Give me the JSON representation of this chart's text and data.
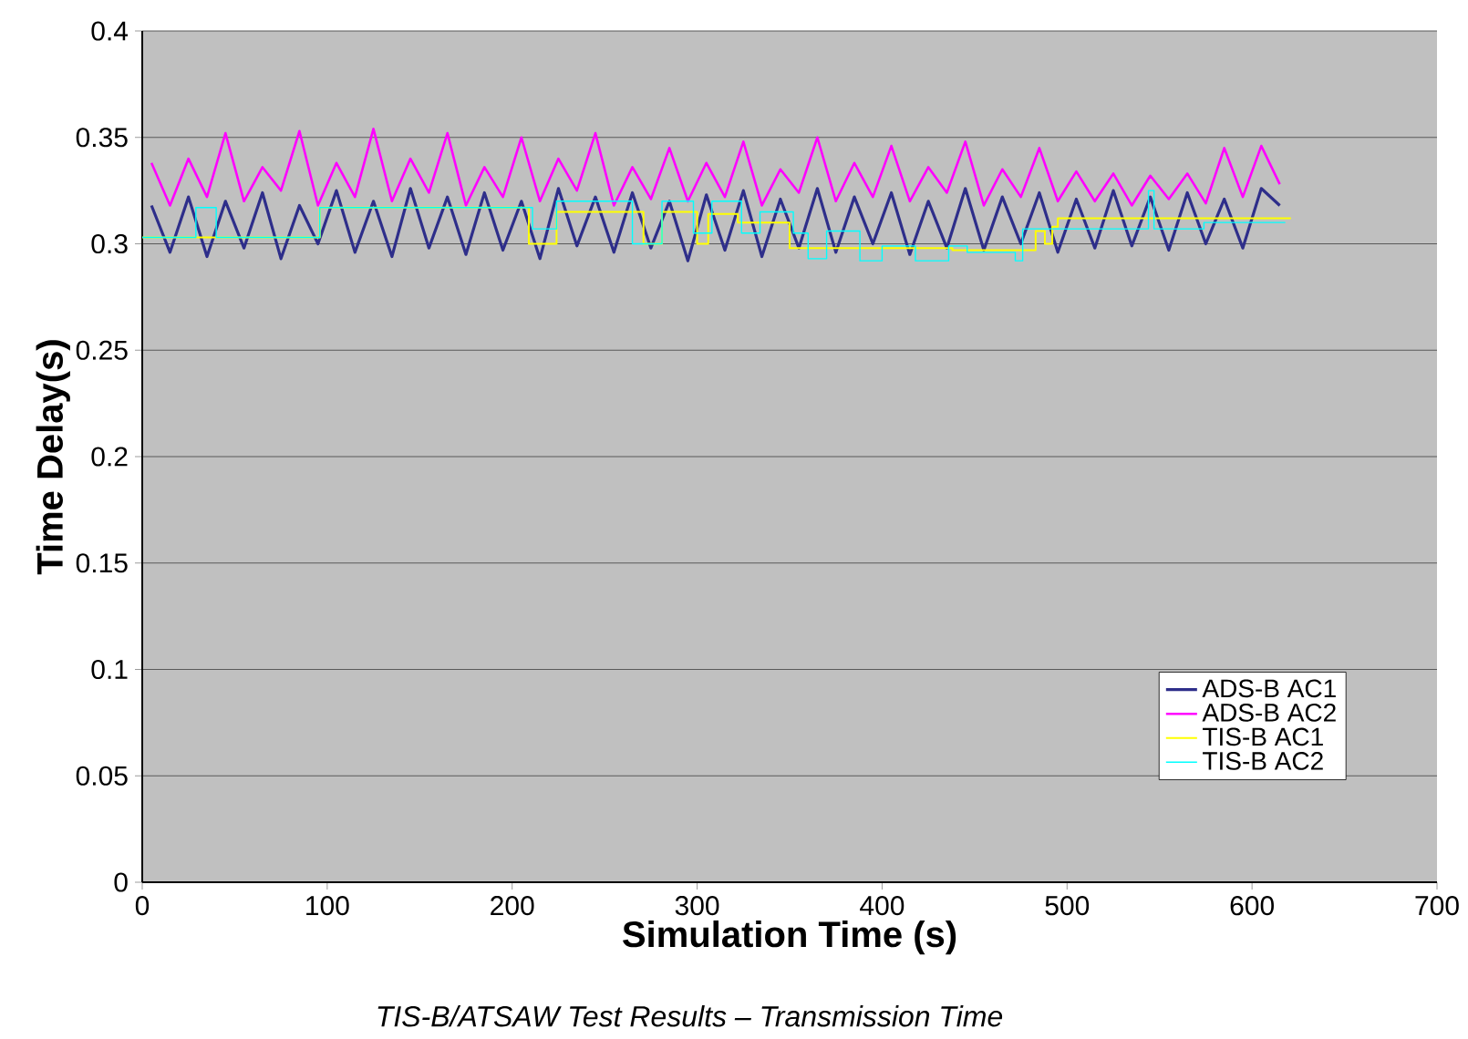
{
  "chart_data": {
    "type": "line",
    "xlabel": "Simulation Time (s)",
    "ylabel": "Time Delay(s)",
    "annotations": [
      "*TIS-B/ATSAW Test Results – Transmission Time*"
    ],
    "xlim": [
      0,
      700
    ],
    "xticks": [
      0,
      100,
      200,
      300,
      400,
      500,
      600,
      700
    ],
    "ylim": [
      0,
      0.4
    ],
    "yticks": [
      0,
      0.05,
      0.1,
      0.15,
      0.2,
      0.25,
      0.3,
      0.35,
      0.4
    ],
    "grid": "y",
    "legend": "bottom right",
    "marker": "none",
    "line_style": "solid",
    "series": [
      {
        "name": "ADS-B AC1",
        "color": "#2e2e8a",
        "x": [
          5,
          15,
          25,
          35,
          45,
          55,
          65,
          75,
          85,
          95,
          105,
          115,
          125,
          135,
          145,
          155,
          165,
          175,
          185,
          195,
          205,
          215,
          225,
          235,
          245,
          255,
          265,
          275,
          285,
          295,
          305,
          315,
          325,
          335,
          345,
          355,
          365,
          375,
          385,
          395,
          405,
          415,
          425,
          435,
          445,
          455,
          465,
          475,
          485,
          495,
          505,
          515,
          525,
          535,
          545,
          555,
          565,
          575,
          585,
          595,
          605,
          615
        ],
        "values": [
          0.318,
          0.296,
          0.322,
          0.294,
          0.32,
          0.298,
          0.324,
          0.293,
          0.318,
          0.3,
          0.325,
          0.296,
          0.32,
          0.294,
          0.326,
          0.298,
          0.322,
          0.295,
          0.324,
          0.297,
          0.32,
          0.293,
          0.326,
          0.299,
          0.322,
          0.296,
          0.324,
          0.298,
          0.32,
          0.292,
          0.323,
          0.297,
          0.325,
          0.294,
          0.321,
          0.298,
          0.326,
          0.296,
          0.322,
          0.3,
          0.324,
          0.295,
          0.32,
          0.298,
          0.326,
          0.297,
          0.322,
          0.3,
          0.324,
          0.296,
          0.321,
          0.298,
          0.325,
          0.299,
          0.322,
          0.297,
          0.324,
          0.3,
          0.321,
          0.298,
          0.326,
          0.318
        ]
      },
      {
        "name": "ADS-B AC2",
        "color": "#ff00ff",
        "x": [
          5,
          15,
          25,
          35,
          45,
          55,
          65,
          75,
          85,
          95,
          105,
          115,
          125,
          135,
          145,
          155,
          165,
          175,
          185,
          195,
          205,
          215,
          225,
          235,
          245,
          255,
          265,
          275,
          285,
          295,
          305,
          315,
          325,
          335,
          345,
          355,
          365,
          375,
          385,
          395,
          405,
          415,
          425,
          435,
          445,
          455,
          465,
          475,
          485,
          495,
          505,
          515,
          525,
          535,
          545,
          555,
          565,
          575,
          585,
          595,
          605,
          615
        ],
        "values": [
          0.338,
          0.318,
          0.34,
          0.322,
          0.352,
          0.32,
          0.336,
          0.325,
          0.353,
          0.318,
          0.338,
          0.322,
          0.354,
          0.32,
          0.34,
          0.324,
          0.352,
          0.318,
          0.336,
          0.322,
          0.35,
          0.32,
          0.34,
          0.325,
          0.352,
          0.318,
          0.336,
          0.321,
          0.345,
          0.32,
          0.338,
          0.322,
          0.348,
          0.318,
          0.335,
          0.324,
          0.35,
          0.32,
          0.338,
          0.322,
          0.346,
          0.32,
          0.336,
          0.324,
          0.348,
          0.318,
          0.335,
          0.322,
          0.345,
          0.32,
          0.334,
          0.32,
          0.333,
          0.318,
          0.332,
          0.321,
          0.333,
          0.319,
          0.345,
          0.322,
          0.346,
          0.328
        ]
      },
      {
        "name": "TIS-B AC1",
        "color": "#ffff00",
        "type": "step",
        "x": [
          0,
          96,
          209,
          224,
          271,
          281,
          300,
          306,
          322,
          350,
          438,
          483,
          488,
          492,
          495,
          621
        ],
        "values": [
          0.303,
          0.317,
          0.3,
          0.315,
          0.3,
          0.315,
          0.3,
          0.314,
          0.31,
          0.298,
          0.297,
          0.306,
          0.3,
          0.308,
          0.312,
          0.312
        ]
      },
      {
        "name": "TIS-B AC2",
        "color": "#00ffff",
        "type": "step",
        "x": [
          0,
          29,
          40,
          96,
          211,
          224,
          265,
          281,
          298,
          308,
          324,
          334,
          352,
          360,
          370,
          388,
          400,
          418,
          436,
          446,
          472,
          476,
          544,
          547,
          574,
          618
        ],
        "values": [
          0.303,
          0.317,
          0.303,
          0.317,
          0.307,
          0.32,
          0.3,
          0.32,
          0.305,
          0.32,
          0.305,
          0.315,
          0.305,
          0.293,
          0.306,
          0.292,
          0.299,
          0.292,
          0.299,
          0.296,
          0.292,
          0.307,
          0.325,
          0.307,
          0.31,
          0.31
        ]
      }
    ]
  }
}
